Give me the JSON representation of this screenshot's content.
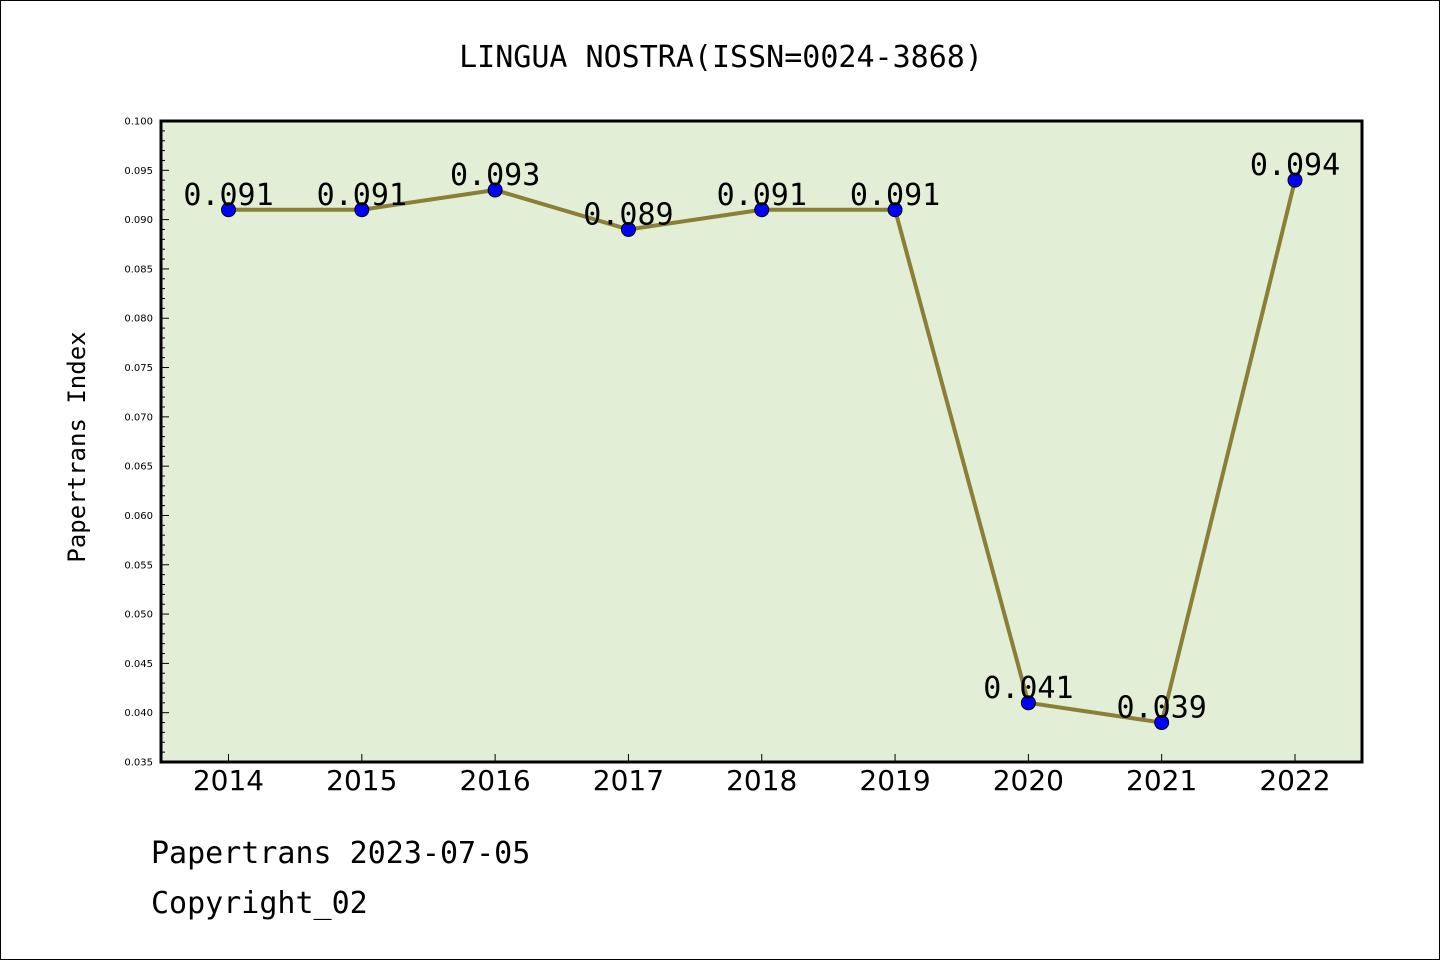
{
  "chart_data": {
    "type": "line",
    "title": "LINGUA NOSTRA(ISSN=0024-3868)",
    "xlabel": "",
    "ylabel": "Papertrans Index",
    "categories": [
      "2014",
      "2015",
      "2016",
      "2017",
      "2018",
      "2019",
      "2020",
      "2021",
      "2022"
    ],
    "series": [
      {
        "values": [
          0.091,
          0.091,
          0.093,
          0.089,
          0.091,
          0.091,
          0.041,
          0.039,
          0.094
        ]
      }
    ],
    "data_labels": [
      "0.091",
      "0.091",
      "0.093",
      "0.089",
      "0.091",
      "0.091",
      "0.041",
      "0.039",
      "0.094"
    ],
    "ylim": [
      0.035,
      0.1
    ],
    "y_ticks": [
      "0.035",
      "0.040",
      "0.045",
      "0.050",
      "0.055",
      "0.060",
      "0.065",
      "0.070",
      "0.075",
      "0.080",
      "0.085",
      "0.090",
      "0.095",
      "0.100"
    ],
    "grid": false,
    "legend": "none",
    "colors": {
      "plot_background": "#e2efd6",
      "line": "#8b7f36",
      "marker": "#0000ff",
      "marker_edge": "#000000"
    }
  },
  "footer": {
    "source": "Papertrans 2023-07-05",
    "copyright": "Copyright_02"
  }
}
